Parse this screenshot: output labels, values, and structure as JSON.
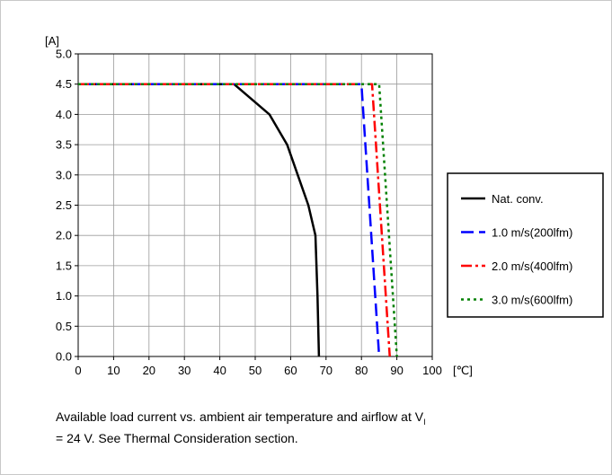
{
  "chart_data": {
    "type": "line",
    "title": "",
    "ylabel": "[A]",
    "xlabel": "[℃]",
    "xlim": [
      0,
      100
    ],
    "ylim": [
      0,
      5.0
    ],
    "xticks": [
      "0",
      "10",
      "20",
      "30",
      "40",
      "50",
      "60",
      "70",
      "80",
      "90",
      "100"
    ],
    "yticks": [
      "0.0",
      "0.5",
      "1.0",
      "1.5",
      "2.0",
      "2.5",
      "3.0",
      "3.5",
      "4.0",
      "4.5",
      "5.0"
    ],
    "grid": true,
    "legend_position": "right",
    "series": [
      {
        "name": "Nat. conv.",
        "color": "#000000",
        "dash": "solid",
        "x": [
          0,
          44,
          54,
          59,
          62,
          65,
          67,
          67.6,
          68
        ],
        "y": [
          4.5,
          4.5,
          4.0,
          3.5,
          3.0,
          2.5,
          2.0,
          1.0,
          0.0
        ]
      },
      {
        "name": "1.0 m/s(200lfm)",
        "color": "#0000ff",
        "dash": "dashed",
        "x": [
          0,
          80,
          85
        ],
        "y": [
          4.5,
          4.5,
          0.0
        ]
      },
      {
        "name": "2.0 m/s(400lfm)",
        "color": "#ff0000",
        "dash": "dashdot",
        "x": [
          0,
          83,
          88
        ],
        "y": [
          4.5,
          4.5,
          0.0
        ]
      },
      {
        "name": "3.0 m/s(600lfm)",
        "color": "#008000",
        "dash": "dotted",
        "x": [
          0,
          85,
          90
        ],
        "y": [
          4.5,
          4.5,
          0.0
        ]
      }
    ]
  },
  "caption": {
    "before_sub": "Available load current vs. ambient air temperature and airflow at V",
    "sub": "I",
    "after_sub": " = 24 V. See Thermal Consideration section."
  }
}
